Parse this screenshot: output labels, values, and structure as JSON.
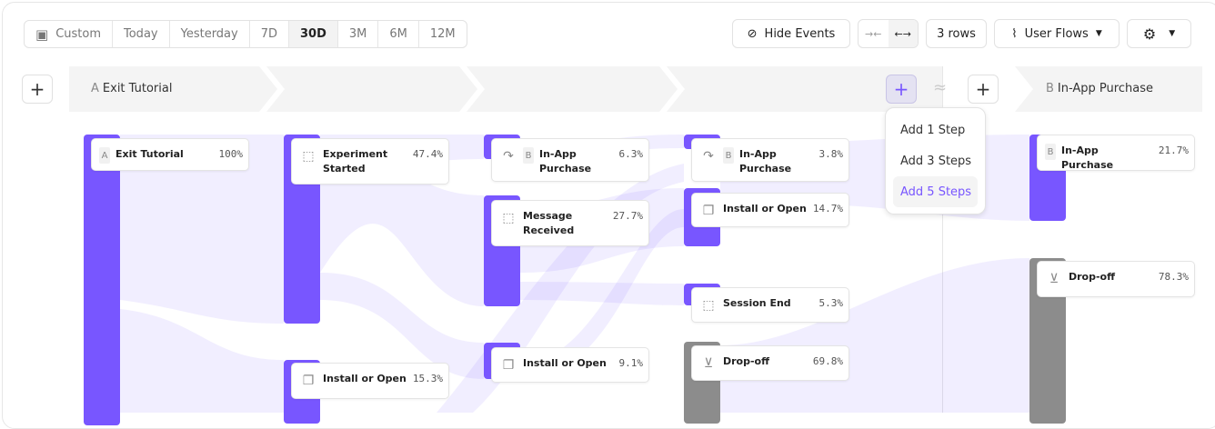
{
  "toolbar": {
    "date_ranges": [
      "Custom",
      "Today",
      "Yesterday",
      "7D",
      "30D",
      "3M",
      "6M",
      "12M"
    ],
    "selected_range": "30D",
    "hide_events": "Hide Events",
    "rows": "3 rows",
    "view": "User Flows"
  },
  "header": {
    "start_letter": "A",
    "start_event": "Exit Tutorial",
    "end_letter": "B",
    "end_event": "In-App Purchase"
  },
  "menu": {
    "items": [
      "Add 1 Step",
      "Add 3 Steps",
      "Add 5 Steps"
    ],
    "highlighted": "Add 5 Steps"
  },
  "nodes": {
    "c1": [
      {
        "letter": "A",
        "name": "Exit Tutorial",
        "pct": "100%"
      }
    ],
    "c2": [
      {
        "name": "Experiment Started",
        "pct": "47.4%"
      },
      {
        "name": "Install or Open",
        "pct": "15.3%"
      }
    ],
    "c3": [
      {
        "letter": "B",
        "name": "In-App Purchase",
        "pct": "6.3%"
      },
      {
        "name": "Message Received",
        "pct": "27.7%"
      },
      {
        "name": "Install or Open",
        "pct": "9.1%"
      }
    ],
    "c4": [
      {
        "letter": "B",
        "name": "In-App Purchase",
        "pct": "3.8%"
      },
      {
        "name": "Install or Open",
        "pct": "14.7%"
      },
      {
        "name": "Session End",
        "pct": "5.3%"
      },
      {
        "name": "Drop-off",
        "pct": "69.8%"
      }
    ],
    "c5": [
      {
        "letter": "B",
        "name": "In-App Purchase",
        "pct": "21.7%"
      },
      {
        "name": "Drop-off",
        "pct": "78.3%"
      }
    ]
  },
  "colors": {
    "accent": "#7856ff",
    "dropoff": "#8c8c8c",
    "flow": "#ebe6ff"
  }
}
